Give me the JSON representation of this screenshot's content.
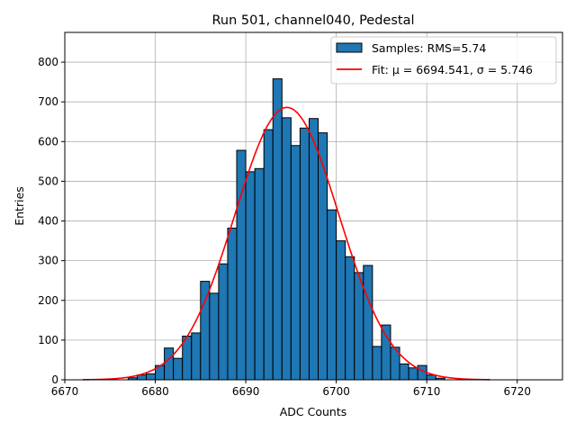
{
  "chart_data": {
    "type": "bar",
    "title": "Run 501, channel040, Pedestal",
    "xlabel": "ADC Counts",
    "ylabel": "Entries",
    "xlim": [
      6670,
      6725
    ],
    "ylim": [
      0,
      875
    ],
    "xticks": [
      6670,
      6680,
      6690,
      6700,
      6710,
      6720
    ],
    "yticks": [
      0,
      100,
      200,
      300,
      400,
      500,
      600,
      700,
      800
    ],
    "grid": true,
    "legend_position": "top-right",
    "bin_width": 1,
    "bins": [
      {
        "x": 6677,
        "value": 5
      },
      {
        "x": 6678,
        "value": 12
      },
      {
        "x": 6679,
        "value": 15
      },
      {
        "x": 6680,
        "value": 36
      },
      {
        "x": 6681,
        "value": 80
      },
      {
        "x": 6682,
        "value": 54
      },
      {
        "x": 6683,
        "value": 110
      },
      {
        "x": 6684,
        "value": 118
      },
      {
        "x": 6685,
        "value": 248
      },
      {
        "x": 6686,
        "value": 218
      },
      {
        "x": 6687,
        "value": 292
      },
      {
        "x": 6688,
        "value": 382
      },
      {
        "x": 6689,
        "value": 578
      },
      {
        "x": 6690,
        "value": 524
      },
      {
        "x": 6691,
        "value": 532
      },
      {
        "x": 6692,
        "value": 630
      },
      {
        "x": 6693,
        "value": 758
      },
      {
        "x": 6694,
        "value": 660
      },
      {
        "x": 6695,
        "value": 590
      },
      {
        "x": 6696,
        "value": 634
      },
      {
        "x": 6697,
        "value": 658
      },
      {
        "x": 6698,
        "value": 622
      },
      {
        "x": 6699,
        "value": 428
      },
      {
        "x": 6700,
        "value": 350
      },
      {
        "x": 6701,
        "value": 310
      },
      {
        "x": 6702,
        "value": 270
      },
      {
        "x": 6703,
        "value": 288
      },
      {
        "x": 6704,
        "value": 84
      },
      {
        "x": 6705,
        "value": 138
      },
      {
        "x": 6706,
        "value": 82
      },
      {
        "x": 6707,
        "value": 40
      },
      {
        "x": 6708,
        "value": 30
      },
      {
        "x": 6709,
        "value": 36
      },
      {
        "x": 6710,
        "value": 12
      },
      {
        "x": 6711,
        "value": 4
      }
    ],
    "series": [
      {
        "name": "Samples: RMS=5.74",
        "kind": "histogram",
        "color": "#1f77b4",
        "edgecolor": "#000000"
      },
      {
        "name": "Fit: μ = 6694.541, σ = 5.746",
        "kind": "gaussian-fit",
        "color": "#ff0000",
        "mu": 6694.541,
        "sigma": 5.746,
        "amplitude": 686,
        "x_range": [
          6672,
          6717
        ]
      }
    ]
  }
}
